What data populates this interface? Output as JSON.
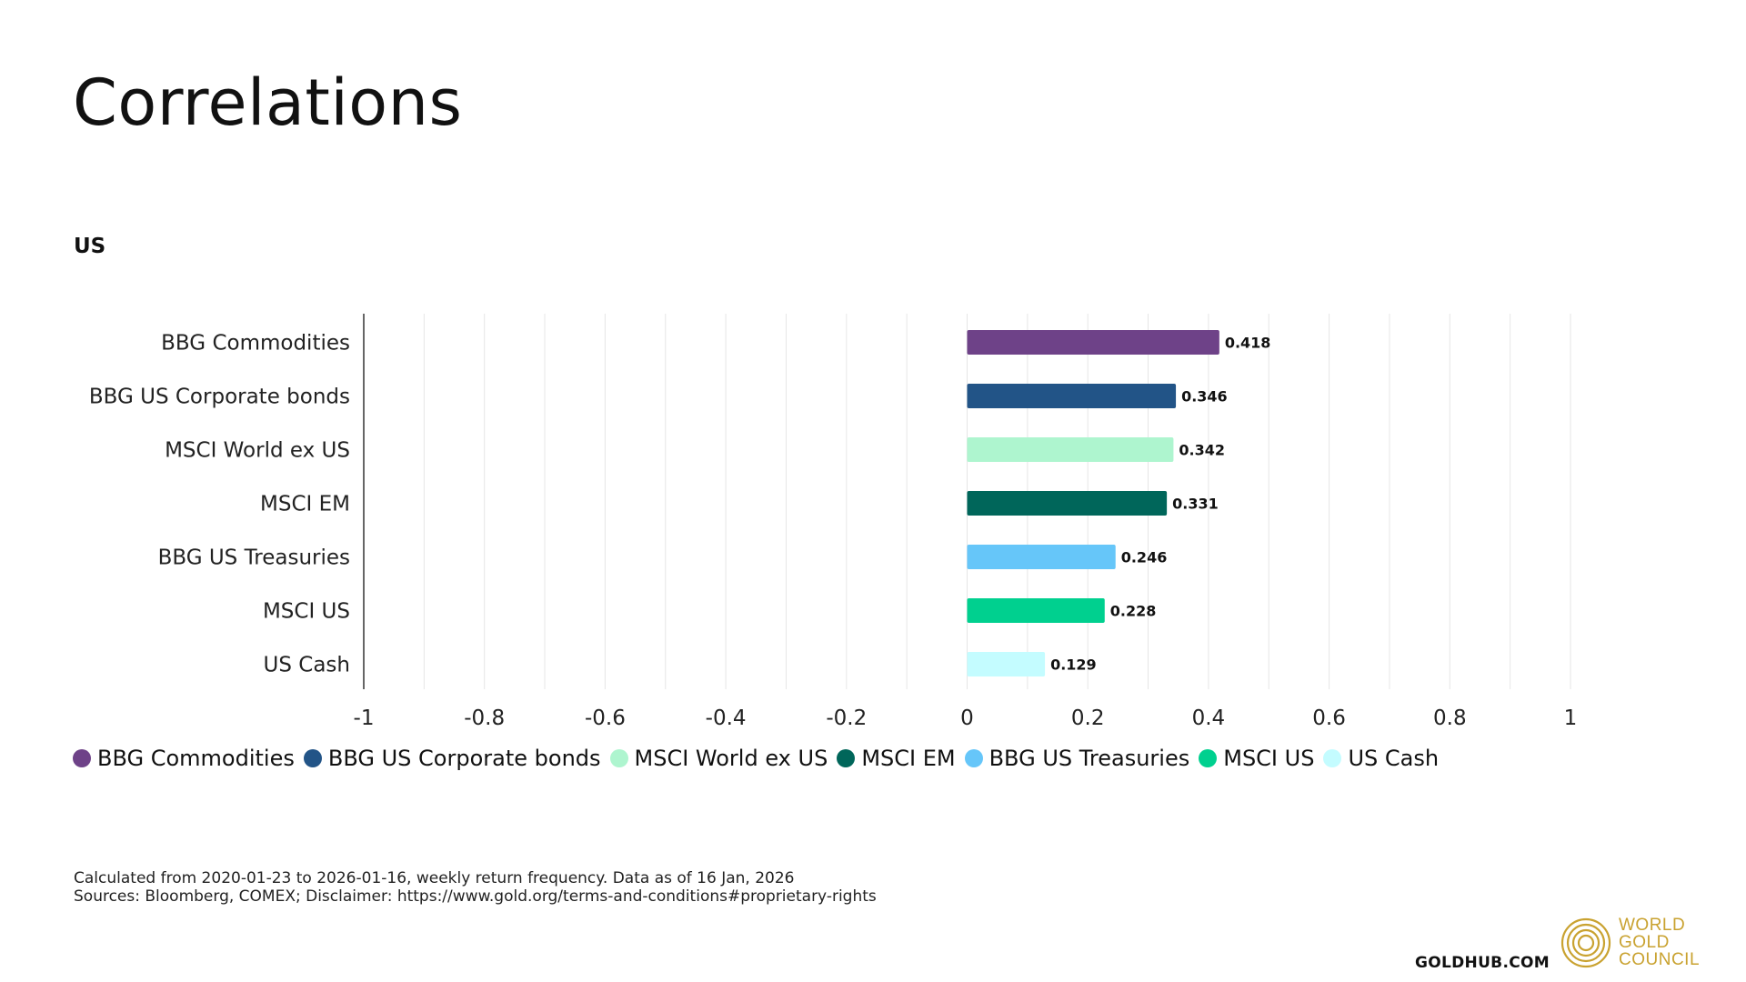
{
  "header": {
    "title": "Correlations",
    "section": "US"
  },
  "chart_data": {
    "type": "bar",
    "orientation": "horizontal",
    "categories": [
      "BBG Commodities",
      "BBG US Corporate bonds",
      "MSCI World ex US",
      "MSCI EM",
      "BBG US Treasuries",
      "MSCI US",
      "US Cash"
    ],
    "values": [
      0.418,
      0.346,
      0.342,
      0.331,
      0.246,
      0.228,
      0.129
    ],
    "data_labels": [
      "0.418",
      "0.346",
      "0.342",
      "0.331",
      "0.246",
      "0.228",
      "0.129"
    ],
    "colors": [
      "#6E4288",
      "#225487",
      "#AEF5CF",
      "#00665A",
      "#66C6F9",
      "#00D08F",
      "#C4FCFF"
    ],
    "xlim": [
      -1,
      1
    ],
    "xticks": [
      "-1",
      "-0.8",
      "-0.6",
      "-0.4",
      "-0.2",
      "0",
      "0.2",
      "0.4",
      "0.6",
      "0.8",
      "1"
    ],
    "grid": true,
    "legend_placement": "bottom-left"
  },
  "legend": {
    "items": [
      {
        "label": "BBG Commodities",
        "color": "#6E4288"
      },
      {
        "label": "BBG US Corporate bonds",
        "color": "#225487"
      },
      {
        "label": "MSCI World ex US",
        "color": "#AEF5CF"
      },
      {
        "label": "MSCI EM",
        "color": "#00665A"
      },
      {
        "label": "BBG US Treasuries",
        "color": "#66C6F9"
      },
      {
        "label": "MSCI US",
        "color": "#00D08F"
      },
      {
        "label": "US Cash",
        "color": "#C4FCFF"
      }
    ]
  },
  "footnotes": {
    "line1": "Calculated from 2020-01-23 to 2026-01-16, weekly return frequency. Data as of 16 Jan, 2026",
    "line2": "Sources: Bloomberg, COMEX; Disclaimer: https://www.gold.org/terms-and-conditions#proprietary-rights"
  },
  "footer": {
    "site": "GOLDHUB.COM",
    "brand_line1": "WORLD",
    "brand_line2": "GOLD",
    "brand_line3": "COUNCIL",
    "brand_color": "#C9A230"
  }
}
